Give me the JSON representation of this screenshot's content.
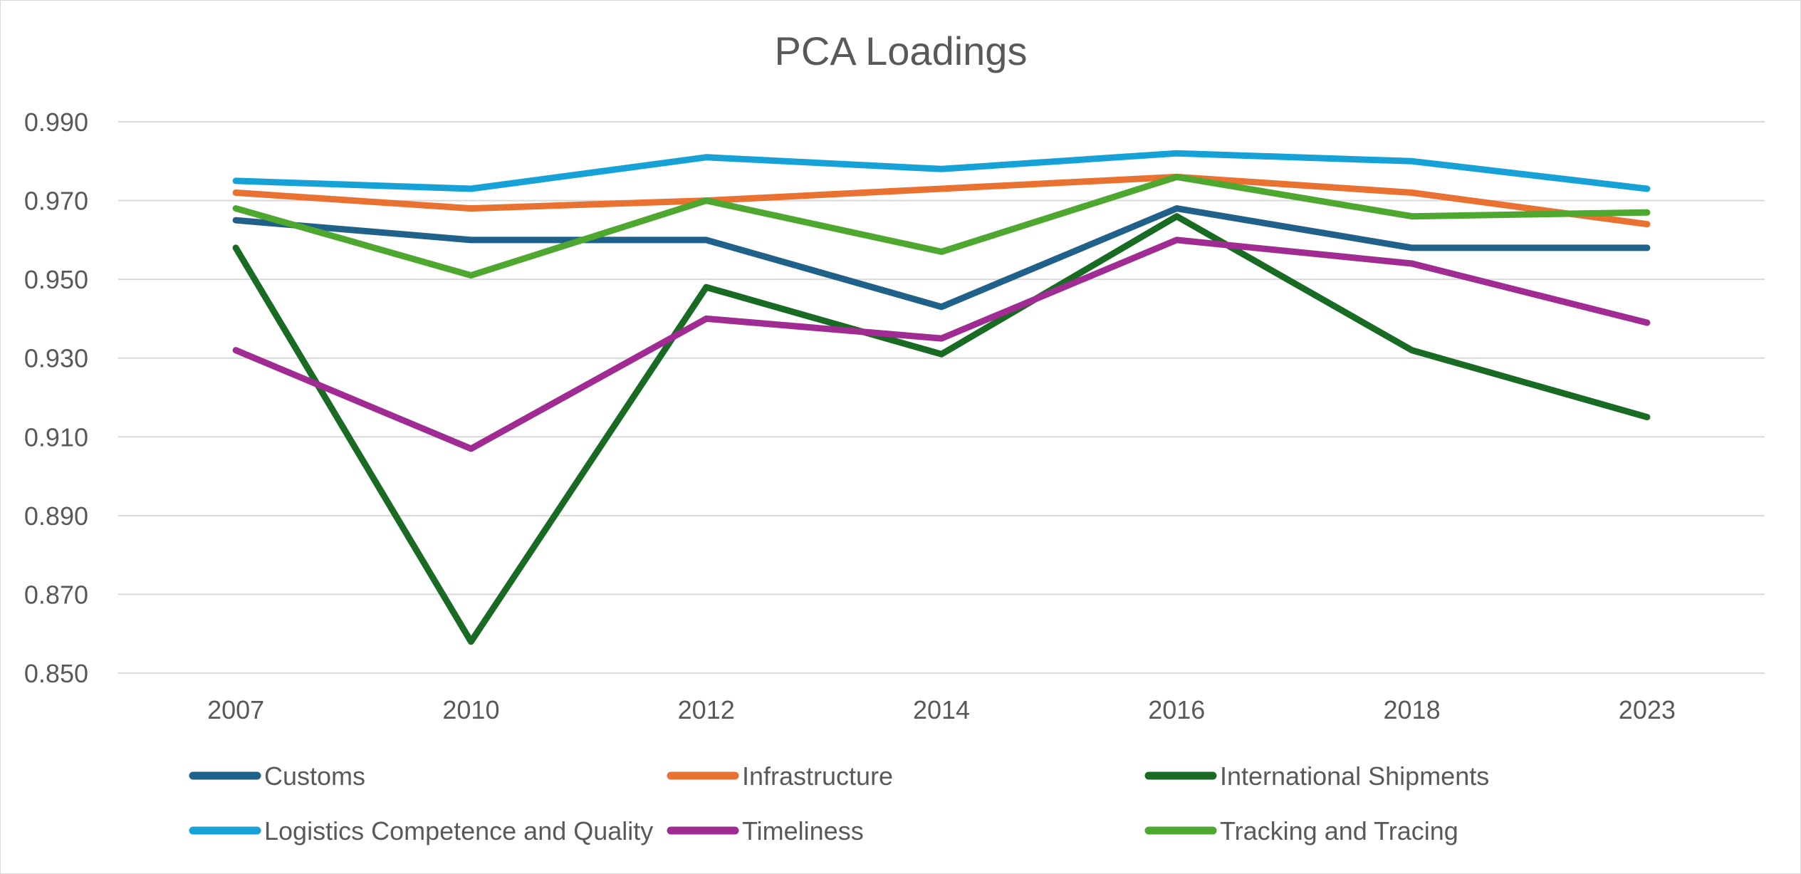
{
  "chart_data": {
    "type": "line",
    "title": "PCA Loadings",
    "xlabel": "",
    "ylabel": "",
    "categories": [
      "2007",
      "2010",
      "2012",
      "2014",
      "2016",
      "2018",
      "2023"
    ],
    "ylim": [
      0.85,
      0.99
    ],
    "yticks": [
      "0.990",
      "0.970",
      "0.950",
      "0.930",
      "0.910",
      "0.890",
      "0.870",
      "0.850"
    ],
    "grid": true,
    "legend_position": "bottom",
    "series": [
      {
        "name": "Customs",
        "color": "#1F6188",
        "values": [
          0.965,
          0.96,
          0.96,
          0.943,
          0.968,
          0.958,
          0.958
        ]
      },
      {
        "name": "Infrastructure",
        "color": "#E97132",
        "values": [
          0.972,
          0.968,
          0.97,
          0.973,
          0.976,
          0.972,
          0.964
        ]
      },
      {
        "name": "International Shipments",
        "color": "#196B24",
        "values": [
          0.958,
          0.858,
          0.948,
          0.931,
          0.966,
          0.932,
          0.915
        ]
      },
      {
        "name": "Logistics Competence and Quality",
        "color": "#16A2D7",
        "values": [
          0.975,
          0.973,
          0.981,
          0.978,
          0.982,
          0.98,
          0.973
        ]
      },
      {
        "name": "Timeliness",
        "color": "#A02B93",
        "values": [
          0.932,
          0.907,
          0.94,
          0.935,
          0.96,
          0.954,
          0.939
        ]
      },
      {
        "name": "Tracking and Tracing",
        "color": "#4EA72E",
        "values": [
          0.968,
          0.951,
          0.97,
          0.957,
          0.976,
          0.966,
          0.967
        ]
      }
    ]
  }
}
